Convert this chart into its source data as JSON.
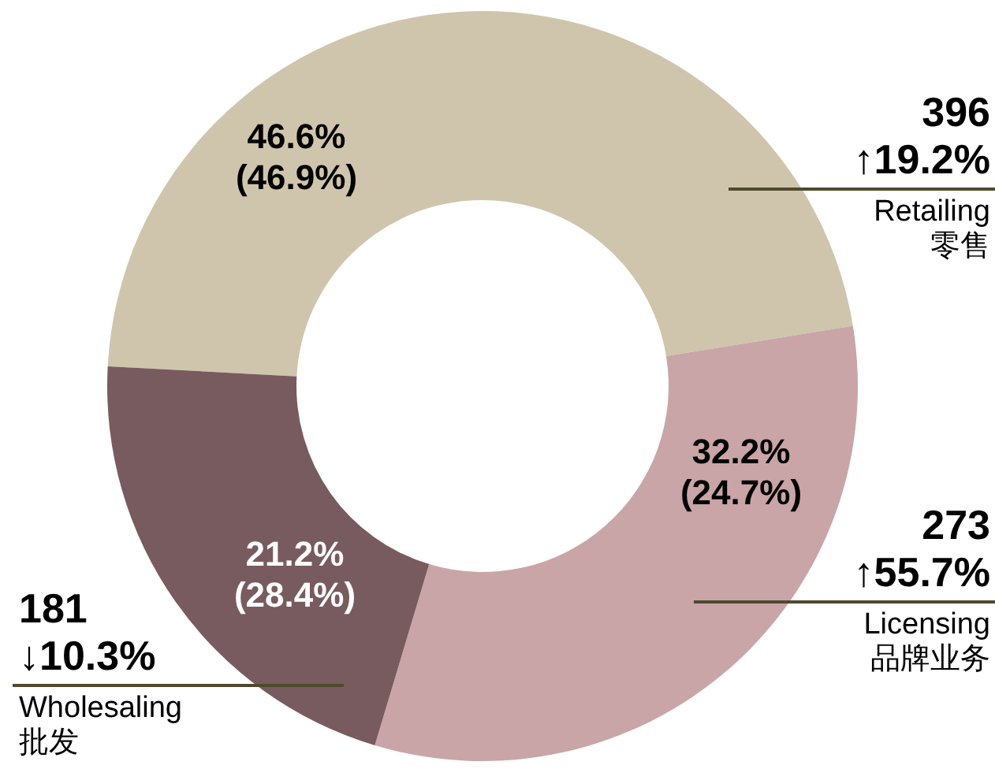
{
  "chart_data": {
    "type": "donut",
    "categories": [
      "Retailing 零售",
      "Licensing 品牌业务",
      "Wholesaling 批发"
    ],
    "values": [
      46.6,
      32.2,
      21.2
    ],
    "colors": [
      "#cfc5ad",
      "#c9a5a7",
      "#785b5e"
    ],
    "value_labels": [
      "46.6% (46.9%)",
      "32.2% (24.7%)",
      "21.2% (28.4%)"
    ],
    "annotations": [
      "396 ↑19.2%",
      "273 ↑55.7%",
      "181 ↓10.3%"
    ]
  }
}
